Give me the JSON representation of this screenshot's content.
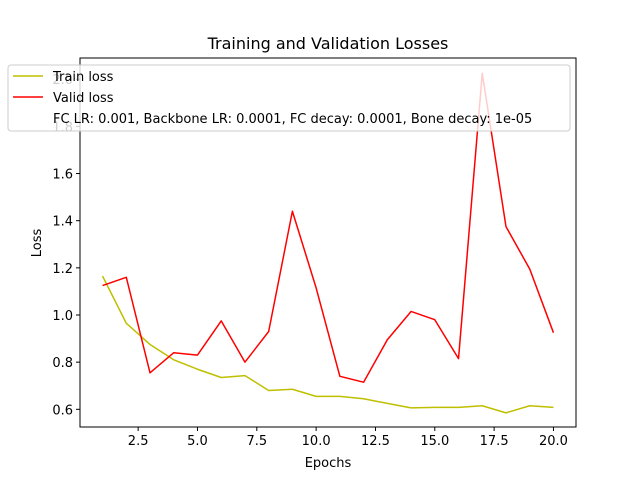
{
  "chart_data": {
    "type": "line",
    "title": "Training and Validation Losses",
    "xlabel": "Epochs",
    "ylabel": "Loss",
    "xlim": [
      0.05,
      20.95
    ],
    "ylim": [
      0.525,
      2.09
    ],
    "xticks": [
      2.5,
      5.0,
      7.5,
      10.0,
      12.5,
      15.0,
      17.5,
      20.0
    ],
    "xtick_labels": [
      "2.5",
      "5.0",
      "7.5",
      "10.0",
      "12.5",
      "15.0",
      "17.5",
      "20.0"
    ],
    "yticks": [
      0.6,
      0.8,
      1.0,
      1.2,
      1.4,
      1.6,
      1.8,
      2.0
    ],
    "ytick_labels": [
      "0.6",
      "0.8",
      "1.0",
      "1.2",
      "1.4",
      "1.6",
      "1.8",
      "2.0"
    ],
    "grid": false,
    "legend_position": "top-left",
    "legend_note": "FC LR: 0.001, Backbone LR: 0.0001, FC decay: 0.0001, Bone decay: 1e-05",
    "x": [
      1,
      2,
      3,
      4,
      5,
      6,
      7,
      8,
      9,
      10,
      11,
      12,
      13,
      14,
      15,
      16,
      17,
      18,
      19,
      20
    ],
    "series": [
      {
        "name": "Train loss",
        "color": "#bfbf00",
        "values": [
          1.165,
          0.965,
          0.875,
          0.81,
          0.77,
          0.735,
          0.743,
          0.68,
          0.685,
          0.655,
          0.655,
          0.645,
          0.625,
          0.606,
          0.608,
          0.608,
          0.615,
          0.585,
          0.615,
          0.608
        ]
      },
      {
        "name": "Valid loss",
        "color": "#ff0000",
        "values": [
          1.125,
          1.16,
          0.755,
          0.84,
          0.83,
          0.975,
          0.8,
          0.93,
          1.44,
          1.115,
          0.74,
          0.715,
          0.895,
          1.015,
          0.98,
          0.815,
          2.025,
          1.375,
          1.195,
          0.925
        ]
      }
    ]
  }
}
